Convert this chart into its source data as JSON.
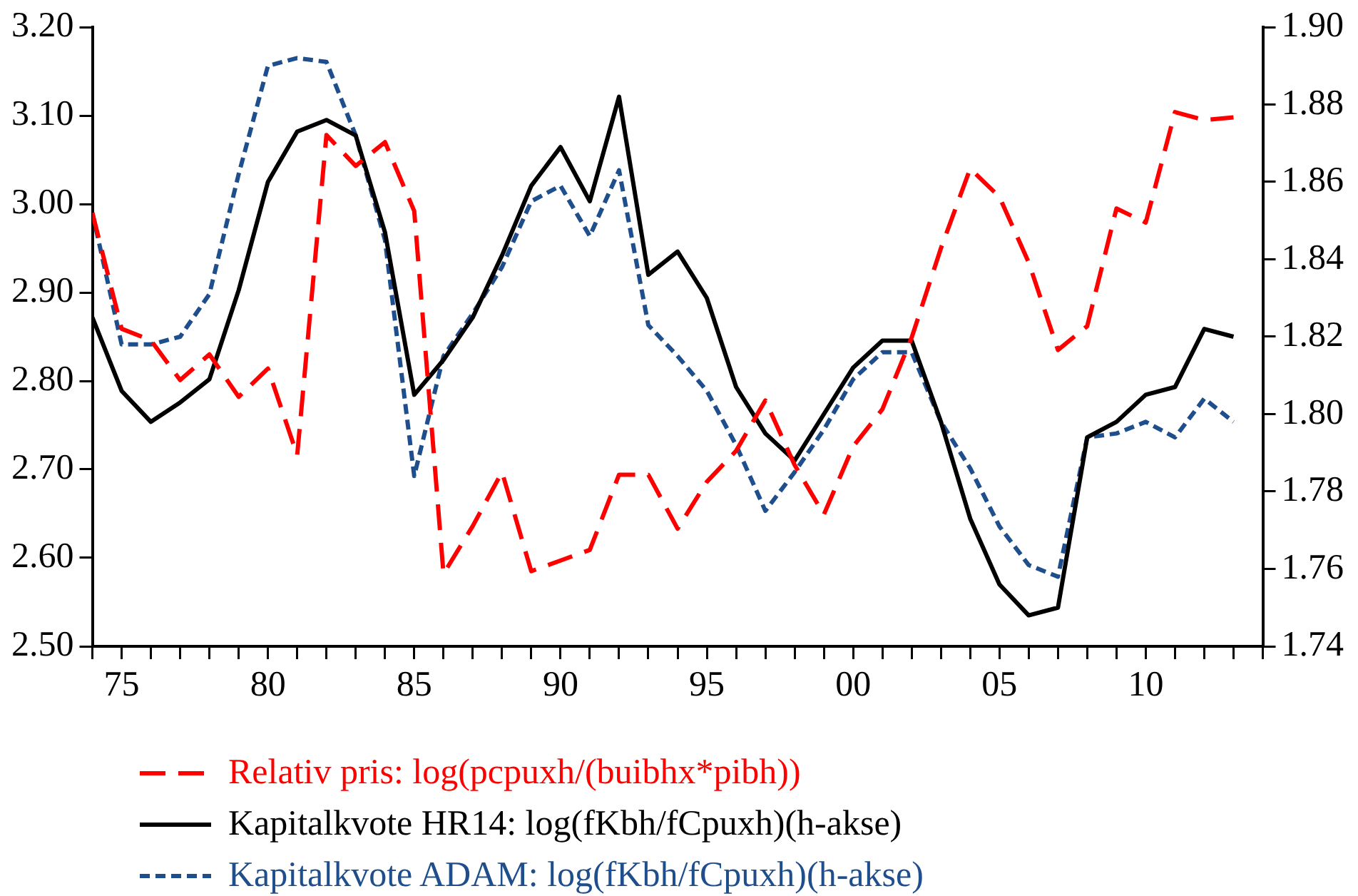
{
  "chart_data": {
    "type": "line",
    "legend": "bottom",
    "grid": false,
    "marker": "none",
    "x": [
      1974,
      1975,
      1976,
      1977,
      1978,
      1979,
      1980,
      1981,
      1982,
      1983,
      1984,
      1985,
      1986,
      1987,
      1988,
      1989,
      1990,
      1991,
      1992,
      1993,
      1994,
      1995,
      1996,
      1997,
      1998,
      1999,
      2000,
      2001,
      2002,
      2003,
      2004,
      2005,
      2006,
      2007,
      2008,
      2009,
      2010,
      2011,
      2012,
      2013
    ],
    "xlim": [
      1974,
      2014
    ],
    "xticks": [
      {
        "value": 1974,
        "label": null
      },
      {
        "value": 1975,
        "label": "75"
      },
      {
        "value": 1976,
        "label": null
      },
      {
        "value": 1977,
        "label": null
      },
      {
        "value": 1978,
        "label": null
      },
      {
        "value": 1979,
        "label": null
      },
      {
        "value": 1980,
        "label": "80"
      },
      {
        "value": 1981,
        "label": null
      },
      {
        "value": 1982,
        "label": null
      },
      {
        "value": 1983,
        "label": null
      },
      {
        "value": 1984,
        "label": null
      },
      {
        "value": 1985,
        "label": "85"
      },
      {
        "value": 1986,
        "label": null
      },
      {
        "value": 1987,
        "label": null
      },
      {
        "value": 1988,
        "label": null
      },
      {
        "value": 1989,
        "label": null
      },
      {
        "value": 1990,
        "label": "90"
      },
      {
        "value": 1991,
        "label": null
      },
      {
        "value": 1992,
        "label": null
      },
      {
        "value": 1993,
        "label": null
      },
      {
        "value": 1994,
        "label": null
      },
      {
        "value": 1995,
        "label": "95"
      },
      {
        "value": 1996,
        "label": null
      },
      {
        "value": 1997,
        "label": null
      },
      {
        "value": 1998,
        "label": null
      },
      {
        "value": 1999,
        "label": null
      },
      {
        "value": 2000,
        "label": "00"
      },
      {
        "value": 2001,
        "label": null
      },
      {
        "value": 2002,
        "label": null
      },
      {
        "value": 2003,
        "label": null
      },
      {
        "value": 2004,
        "label": null
      },
      {
        "value": 2005,
        "label": "05"
      },
      {
        "value": 2006,
        "label": null
      },
      {
        "value": 2007,
        "label": null
      },
      {
        "value": 2008,
        "label": null
      },
      {
        "value": 2009,
        "label": null
      },
      {
        "value": 2010,
        "label": "10"
      },
      {
        "value": 2011,
        "label": null
      },
      {
        "value": 2012,
        "label": null
      },
      {
        "value": 2013,
        "label": null
      },
      {
        "value": 2014,
        "label": null
      }
    ],
    "ylim": [
      2.5,
      3.2
    ],
    "yticks": [
      {
        "value": 2.5,
        "label": "2.50"
      },
      {
        "value": 2.6,
        "label": "2.60"
      },
      {
        "value": 2.7,
        "label": "2.70"
      },
      {
        "value": 2.8,
        "label": "2.80"
      },
      {
        "value": 2.9,
        "label": "2.90"
      },
      {
        "value": 3.0,
        "label": "3.00"
      },
      {
        "value": 3.1,
        "label": "3.10"
      },
      {
        "value": 3.2,
        "label": "3.20"
      }
    ],
    "y2lim": [
      1.74,
      1.9
    ],
    "y2ticks": [
      {
        "value": 1.74,
        "label": "1.74"
      },
      {
        "value": 1.76,
        "label": "1.76"
      },
      {
        "value": 1.78,
        "label": "1.78"
      },
      {
        "value": 1.8,
        "label": "1.80"
      },
      {
        "value": 1.82,
        "label": "1.82"
      },
      {
        "value": 1.84,
        "label": "1.84"
      },
      {
        "value": 1.86,
        "label": "1.86"
      },
      {
        "value": 1.88,
        "label": "1.88"
      },
      {
        "value": 1.9,
        "label": "1.90"
      }
    ],
    "series": [
      {
        "name": "Relativ pris: log(pcpuxh/(buibhx*pibh))",
        "color": "#ff0000",
        "line_style": "dashed",
        "values": [
          2.99,
          2.859,
          2.846,
          2.801,
          2.83,
          2.782,
          2.814,
          2.716,
          3.078,
          3.043,
          3.07,
          2.992,
          2.582,
          2.636,
          2.697,
          2.585,
          2.597,
          2.609,
          2.694,
          2.694,
          2.633,
          2.686,
          2.721,
          2.778,
          2.705,
          2.649,
          2.726,
          2.768,
          2.849,
          2.95,
          3.04,
          3.008,
          2.934,
          2.835,
          2.862,
          2.995,
          2.979,
          3.104,
          3.095,
          3.098
        ]
      },
      {
        "name": "Kapitalkvote HR14: log(fKbh/fCpuxh)(h-akse)",
        "color": "#000000",
        "line_style": "solid",
        "axis": "y2",
        "values": [
          1.825,
          1.806,
          1.798,
          1.803,
          1.809,
          1.832,
          1.86,
          1.873,
          1.876,
          1.872,
          1.847,
          1.805,
          1.814,
          1.825,
          1.841,
          1.859,
          1.869,
          1.855,
          1.882,
          1.836,
          1.842,
          1.83,
          1.807,
          1.795,
          1.788,
          1.8,
          1.812,
          1.819,
          1.819,
          1.798,
          1.773,
          1.756,
          1.748,
          1.75,
          1.794,
          1.798,
          1.805,
          1.807,
          1.822,
          1.82
        ]
      },
      {
        "name": "Kapitalkvote ADAM: log(fKbh/fCpuxh)(h-akse)",
        "color": "#1f4e8c",
        "line_style": "dotted",
        "axis": "y2",
        "values": [
          1.852,
          1.818,
          1.818,
          1.82,
          1.831,
          1.862,
          1.89,
          1.892,
          1.891,
          1.872,
          1.845,
          1.784,
          1.815,
          1.826,
          1.838,
          1.855,
          1.859,
          1.846,
          1.863,
          1.823,
          1.815,
          1.806,
          1.792,
          1.775,
          1.785,
          1.796,
          1.809,
          1.816,
          1.816,
          1.798,
          1.786,
          1.771,
          1.761,
          1.758,
          1.794,
          1.795,
          1.798,
          1.794,
          1.804,
          1.798
        ]
      }
    ]
  }
}
